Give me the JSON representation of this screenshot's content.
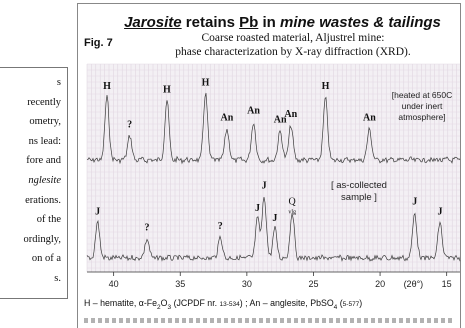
{
  "side_text": {
    "lines": [
      {
        "text": "s",
        "italic": false
      },
      {
        "text": "recently",
        "italic": false
      },
      {
        "text": "ometry,",
        "italic": false
      },
      {
        "text": "ns lead:",
        "italic": false
      },
      {
        "text": "fore and",
        "italic": false
      },
      {
        "text": "nglesite",
        "italic": true
      },
      {
        "text": "erations.",
        "italic": false
      },
      {
        "text": "of the",
        "italic": false
      },
      {
        "text": "ordingly,",
        "italic": false
      },
      {
        "text": "on of a",
        "italic": false
      },
      {
        "text": "s.",
        "italic": false
      }
    ]
  },
  "figure": {
    "title_parts": {
      "p1": "Jarosite",
      "p2": " retains ",
      "p3": "Pb",
      "p4": " in ",
      "p5": "mine wastes & tailings"
    },
    "fig_label": "Fig. 7",
    "subtitle_line1": "Coarse roasted material, Aljustrel mine:",
    "subtitle_line2": "phase characterization by X-ray diffraction (XRD).",
    "upper_note": "[heated at 650C\nunder inert\natmosphere]",
    "lower_note": "[ as-collected\nsample ]",
    "axis_unit_label": "(2θ°)",
    "legend_line1": {
      "a": "H –  hematite,  α-Fe",
      "b": "2",
      "c": "O",
      "d": "3",
      "e": "  (JCPDF nr. ",
      "f": "13-534",
      "g": ") ;  An – anglesite, PbSO",
      "h": "4",
      "i": "  (",
      "j": "5-577",
      "k": ")"
    }
  },
  "chart_data": {
    "type": "line",
    "xlabel": "(2θ°)",
    "x_range": [
      42,
      14
    ],
    "x_ticks": [
      40,
      35,
      30,
      25,
      20,
      15
    ],
    "series": [
      {
        "peaks": [
          {
            "label": "H",
            "x": 40.5,
            "h": 0.9
          },
          {
            "label": "?",
            "x": 38.8,
            "h": 0.35
          },
          {
            "label": "H",
            "x": 36.0,
            "h": 0.85
          },
          {
            "label": "H",
            "x": 33.1,
            "h": 0.95
          },
          {
            "label": "An",
            "x": 31.5,
            "h": 0.45
          },
          {
            "label": "An",
            "x": 29.5,
            "h": 0.55
          },
          {
            "label": "An",
            "x": 27.5,
            "h": 0.42
          },
          {
            "label": "An",
            "x": 26.7,
            "h": 0.5
          },
          {
            "label": "H",
            "x": 24.1,
            "h": 0.9
          },
          {
            "label": "An",
            "x": 20.8,
            "h": 0.45
          }
        ]
      },
      {
        "peaks": [
          {
            "label": "J",
            "x": 41.2,
            "h": 0.55
          },
          {
            "label": "?",
            "x": 37.5,
            "h": 0.3
          },
          {
            "label": "?",
            "x": 32.0,
            "h": 0.32
          },
          {
            "label": "J",
            "x": 29.2,
            "h": 0.6
          },
          {
            "label": "J",
            "x": 28.7,
            "h": 0.95
          },
          {
            "label": "J",
            "x": 27.9,
            "h": 0.45
          },
          {
            "label": "Q",
            "x": 26.6,
            "h": 0.7,
            "sub": "vlg"
          },
          {
            "label": "J",
            "x": 17.4,
            "h": 0.7
          },
          {
            "label": "J",
            "x": 15.5,
            "h": 0.55
          }
        ]
      }
    ]
  }
}
